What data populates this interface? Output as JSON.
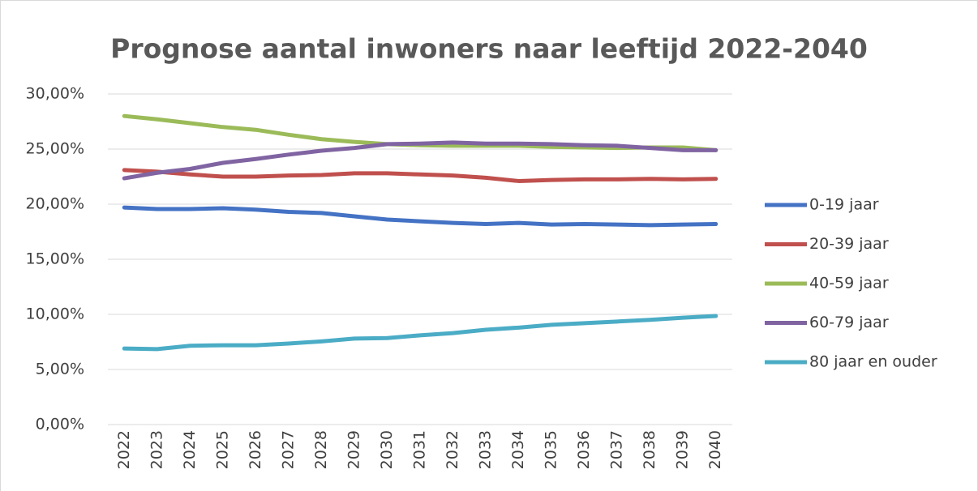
{
  "chart_data": {
    "type": "line",
    "title": "Prognose aantal inwoners naar leeftijd 2022-2040",
    "categories": [
      "2022",
      "2023",
      "2024",
      "2025",
      "2026",
      "2027",
      "2028",
      "2029",
      "2030",
      "2031",
      "2032",
      "2033",
      "2034",
      "2035",
      "2036",
      "2037",
      "2038",
      "2039",
      "2040"
    ],
    "series": [
      {
        "name": "0-19 jaar",
        "color": "#4472c4",
        "values": [
          19.7,
          19.56,
          19.56,
          19.63,
          19.5,
          19.3,
          19.2,
          18.9,
          18.6,
          18.45,
          18.3,
          18.2,
          18.3,
          18.15,
          18.2,
          18.15,
          18.1,
          18.15,
          18.2
        ]
      },
      {
        "name": "20-39 jaar",
        "color": "#c0504d",
        "values": [
          23.1,
          22.95,
          22.7,
          22.5,
          22.5,
          22.6,
          22.65,
          22.8,
          22.8,
          22.7,
          22.6,
          22.4,
          22.1,
          22.2,
          22.25,
          22.25,
          22.3,
          22.25,
          22.3
        ]
      },
      {
        "name": "40-59 jaar",
        "color": "#9bbb59",
        "values": [
          28.0,
          27.7,
          27.35,
          27.0,
          26.75,
          26.3,
          25.9,
          25.65,
          25.45,
          25.35,
          25.3,
          25.3,
          25.3,
          25.2,
          25.15,
          25.1,
          25.15,
          25.15,
          24.9
        ]
      },
      {
        "name": "60-79 jaar",
        "color": "#8064a2",
        "values": [
          22.35,
          22.85,
          23.2,
          23.75,
          24.1,
          24.5,
          24.85,
          25.1,
          25.45,
          25.5,
          25.6,
          25.5,
          25.5,
          25.45,
          25.35,
          25.3,
          25.1,
          24.9,
          24.9
        ]
      },
      {
        "name": "80 jaar en ouder",
        "color": "#4bacc6",
        "values": [
          6.9,
          6.85,
          7.15,
          7.2,
          7.2,
          7.35,
          7.55,
          7.8,
          7.85,
          8.1,
          8.3,
          8.6,
          8.8,
          9.05,
          9.2,
          9.35,
          9.5,
          9.7,
          9.85
        ]
      }
    ],
    "ylim": [
      0,
      30
    ],
    "yticks": [
      {
        "value": 0,
        "label": "0,00%"
      },
      {
        "value": 5,
        "label": "5,00%"
      },
      {
        "value": 10,
        "label": "10,00%"
      },
      {
        "value": 15,
        "label": "15,00%"
      },
      {
        "value": 20,
        "label": "20,00%"
      },
      {
        "value": 25,
        "label": "25,00%"
      },
      {
        "value": 30,
        "label": "30,00%"
      }
    ],
    "grid": true,
    "legend": "right"
  }
}
